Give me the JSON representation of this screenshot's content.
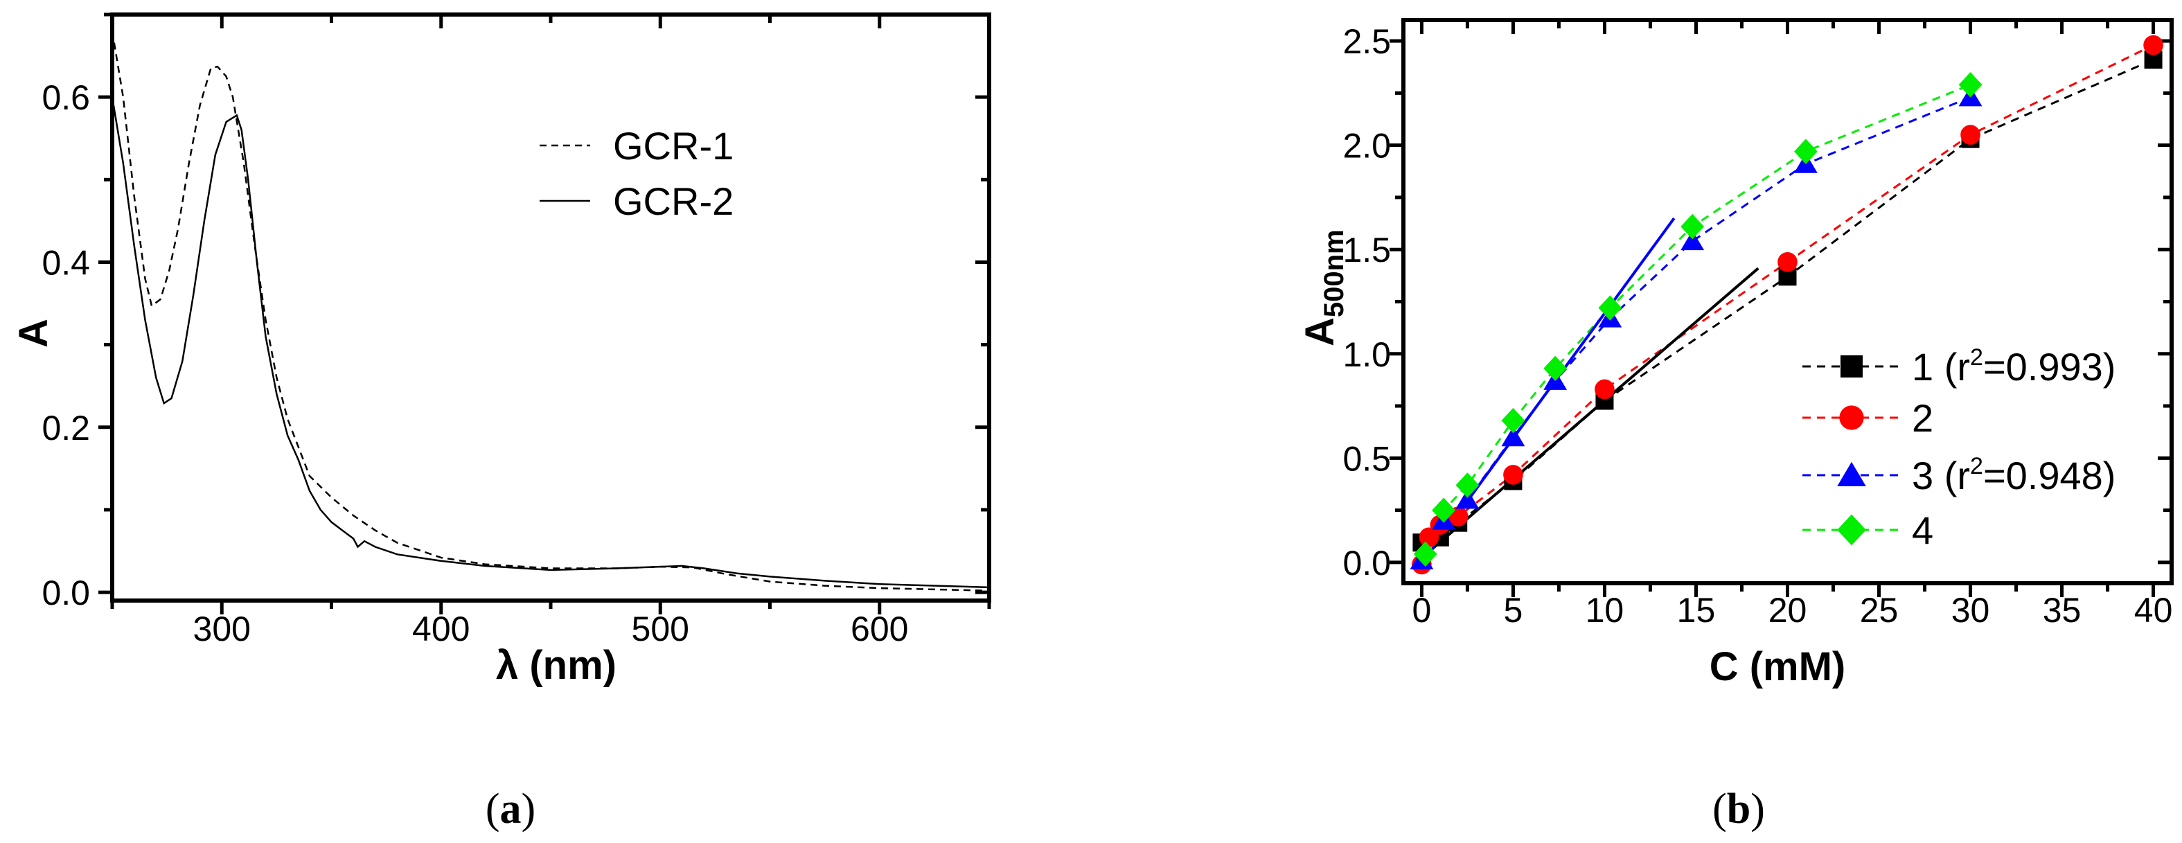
{
  "panel_labels": {
    "a_open": "(",
    "a": "a",
    "a_close": ")",
    "b_open": "(",
    "b": "b",
    "b_close": ")"
  },
  "chart_data": [
    {
      "type": "line",
      "xlabel": "λ (nm)",
      "ylabel": "A",
      "xlim": [
        250,
        650
      ],
      "ylim": [
        -0.01,
        0.7
      ],
      "xticks": [
        300,
        400,
        500,
        600
      ],
      "xtick_labels": [
        "300",
        "400",
        "500",
        "600"
      ],
      "yticks": [
        0.0,
        0.2,
        0.4,
        0.6
      ],
      "ytick_labels": [
        "0.0",
        "0.2",
        "0.4",
        "0.6"
      ],
      "grid": false,
      "legend_position": "top-right",
      "series": [
        {
          "name": "GCR-1",
          "style": "dashed",
          "color": "#000000",
          "x": [
            250,
            255,
            260,
            265,
            268,
            272,
            276,
            280,
            285,
            290,
            295,
            298,
            302,
            305,
            310,
            315,
            320,
            325,
            330,
            340,
            350,
            360,
            370,
            380,
            400,
            420,
            450,
            480,
            500,
            515,
            530,
            550,
            575,
            600,
            650
          ],
          "y": [
            0.68,
            0.6,
            0.48,
            0.38,
            0.347,
            0.355,
            0.39,
            0.44,
            0.52,
            0.59,
            0.635,
            0.637,
            0.625,
            0.6,
            0.52,
            0.42,
            0.33,
            0.26,
            0.21,
            0.141,
            0.115,
            0.093,
            0.075,
            0.06,
            0.042,
            0.034,
            0.029,
            0.029,
            0.031,
            0.03,
            0.022,
            0.013,
            0.008,
            0.005,
            0.002
          ]
        },
        {
          "name": "GCR-2",
          "style": "solid",
          "color": "#000000",
          "x": [
            250,
            255,
            260,
            265,
            270,
            273.6,
            277,
            282,
            287,
            292,
            297,
            302,
            306.8,
            309,
            312,
            316,
            320,
            325,
            330,
            335,
            340,
            345,
            350,
            355,
            360,
            362,
            365,
            370,
            380,
            400,
            420,
            450,
            480,
            500,
            510,
            520,
            535,
            550,
            575,
            600,
            650
          ],
          "y": [
            0.6,
            0.52,
            0.42,
            0.33,
            0.26,
            0.229,
            0.235,
            0.28,
            0.36,
            0.45,
            0.53,
            0.57,
            0.578,
            0.56,
            0.5,
            0.4,
            0.31,
            0.24,
            0.19,
            0.16,
            0.123,
            0.1,
            0.085,
            0.075,
            0.065,
            0.055,
            0.062,
            0.055,
            0.046,
            0.038,
            0.032,
            0.027,
            0.029,
            0.031,
            0.032,
            0.029,
            0.023,
            0.019,
            0.014,
            0.01,
            0.006
          ]
        }
      ]
    },
    {
      "type": "scatter",
      "xlabel": "C (mM)",
      "ylabel": "A",
      "ylabel_sub": "500nm",
      "xlim": [
        -1,
        41
      ],
      "ylim": [
        -0.1,
        2.6
      ],
      "xticks": [
        0,
        5,
        10,
        15,
        20,
        25,
        30,
        35,
        40
      ],
      "xtick_labels": [
        "0",
        "5",
        "10",
        "15",
        "20",
        "25",
        "30",
        "35",
        "40"
      ],
      "yticks": [
        0.0,
        0.5,
        1.0,
        1.5,
        2.0,
        2.5
      ],
      "ytick_labels": [
        "0.0",
        "0.5",
        "1.0",
        "1.5",
        "2.0",
        "2.5"
      ],
      "grid": false,
      "legend_position": "center-right",
      "series": [
        {
          "name": "1",
          "r2_prefix": " (r",
          "r2_sup": "2",
          "r2_suffix": "=0.993)",
          "marker": "square",
          "color": "#000000",
          "x": [
            0,
            1,
            2,
            5,
            10,
            20,
            30,
            40
          ],
          "y": [
            0.095,
            0.12,
            0.19,
            0.39,
            0.775,
            1.37,
            2.03,
            2.41
          ]
        },
        {
          "name": "2",
          "marker": "circle",
          "color": "#ff0000",
          "x": [
            0,
            0.4,
            1,
            2,
            5,
            10,
            20,
            30,
            40
          ],
          "y": [
            -0.01,
            0.12,
            0.18,
            0.22,
            0.42,
            0.83,
            1.44,
            2.05,
            2.48
          ]
        },
        {
          "name": "3",
          "r2_prefix": " (r",
          "r2_sup": "2",
          "r2_suffix": "=0.948)",
          "marker": "triangle",
          "color": "#0000ff",
          "x": [
            0,
            1.2,
            2.5,
            5,
            7.3,
            10.3,
            14.8,
            21,
            30
          ],
          "y": [
            0.01,
            0.2,
            0.3,
            0.6,
            0.87,
            1.17,
            1.54,
            1.91,
            2.23
          ]
        },
        {
          "name": "4",
          "marker": "diamond",
          "color": "#00ee00",
          "x": [
            0.2,
            1.2,
            2.5,
            5,
            7.3,
            10.3,
            14.8,
            21,
            30
          ],
          "y": [
            0.04,
            0.25,
            0.37,
            0.68,
            0.93,
            1.22,
            1.61,
            1.97,
            2.29
          ]
        }
      ],
      "fits": [
        {
          "series": "1",
          "color": "#000000",
          "x": [
            0.38,
            18.4
          ],
          "y": [
            0.05,
            1.41
          ]
        },
        {
          "series": "3",
          "color": "#0000ff",
          "x": [
            0.38,
            13.8
          ],
          "y": [
            0.04,
            1.65
          ]
        }
      ]
    }
  ]
}
